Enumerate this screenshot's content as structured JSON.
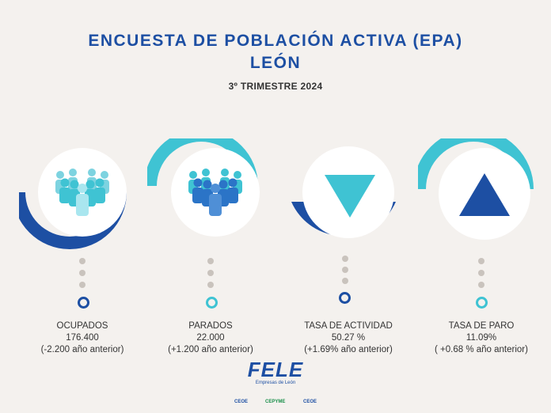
{
  "header": {
    "title_line1": "ENCUESTA DE POBLACIÓN ACTIVA (EPA)",
    "title_line2": "LEÓN",
    "subtitle": "3º TRIMESTRE 2024"
  },
  "colors": {
    "blue": "#1d4fa3",
    "teal": "#3fc3d3",
    "light_teal": "#7dd3e0",
    "background": "#f4f1ee"
  },
  "cards": [
    {
      "icon": "people-group-icon",
      "label": "OCUPADOS",
      "value": "176.400",
      "change": "(-2.200 año anterior)"
    },
    {
      "icon": "people-group-icon",
      "label": "PARADOS",
      "value": "22.000",
      "change": "(+1.200 año anterior)"
    },
    {
      "icon": "triangle-down-icon",
      "label": "TASA DE ACTIVIDAD",
      "value": "50.27 %",
      "change": "(+1.69% año anterior)"
    },
    {
      "icon": "triangle-up-icon",
      "label": "TASA DE PARO",
      "value": "11.09%",
      "change": "( +0.68 % año anterior)"
    }
  ],
  "footer": {
    "logo_text": "FELE",
    "logo_subtext": "Empresas de León",
    "partners": [
      "CEOE",
      "CEPYME",
      "CEOE"
    ]
  }
}
